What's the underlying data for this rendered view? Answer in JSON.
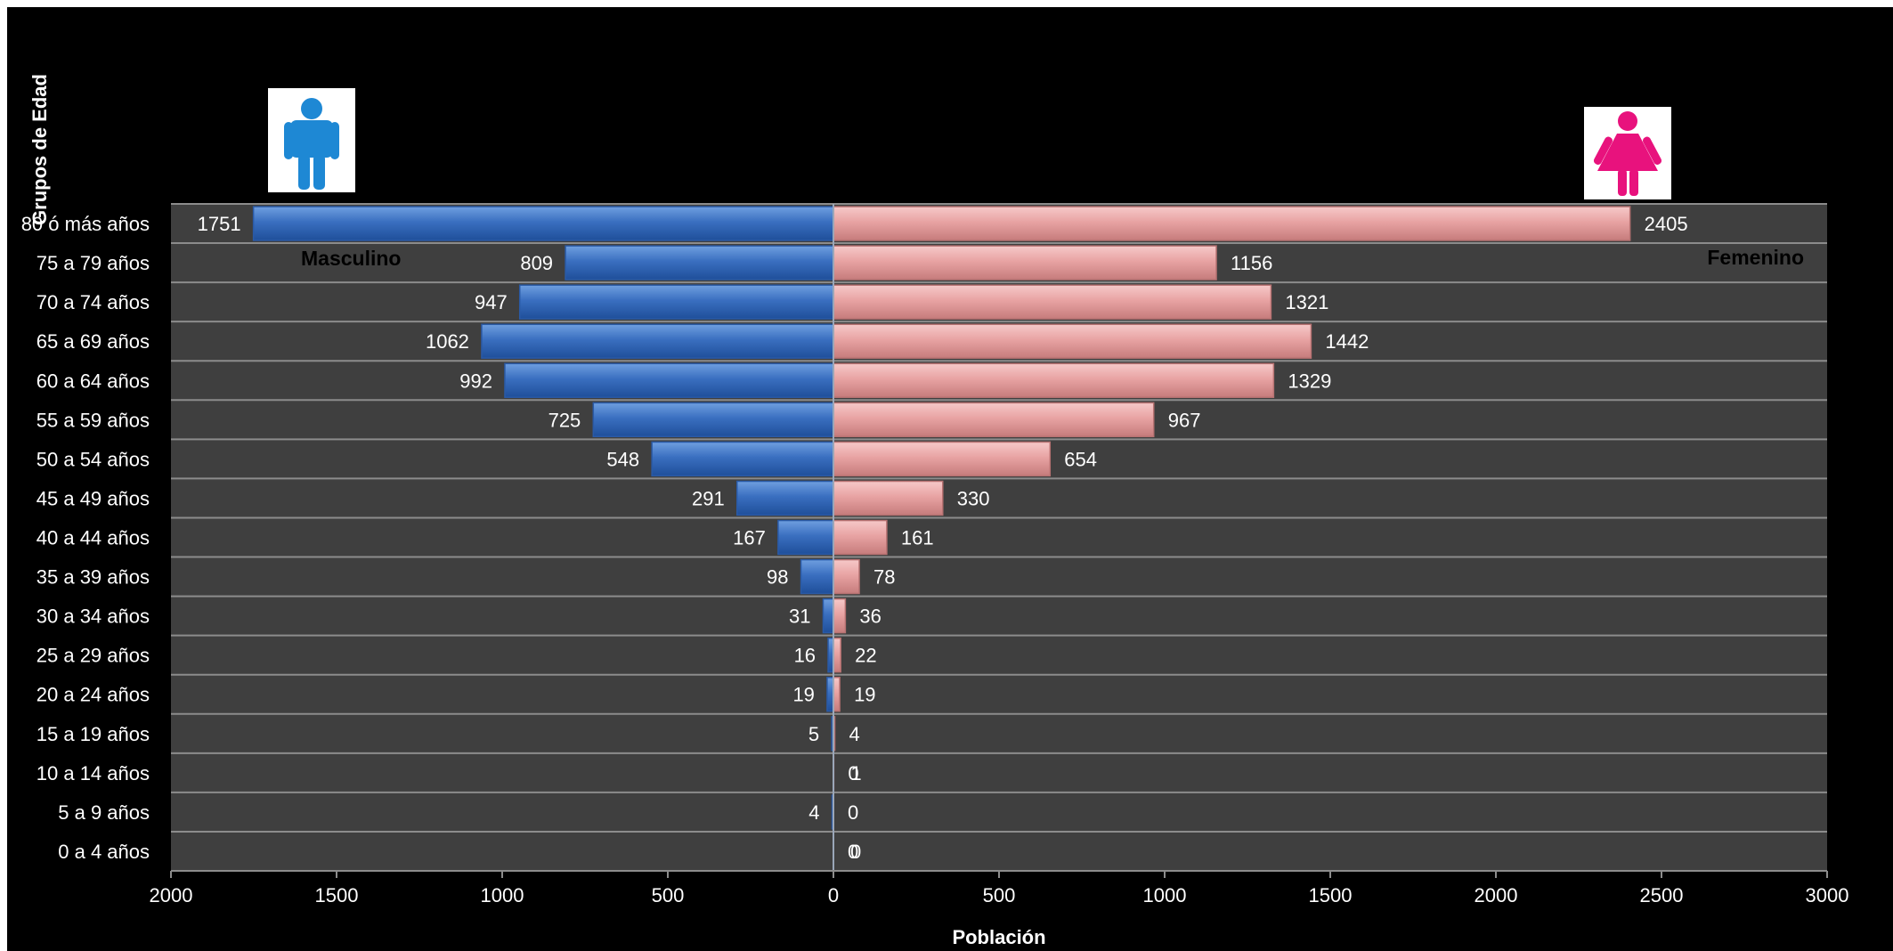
{
  "chart_data": {
    "type": "bar",
    "orientation": "horizontal",
    "layout": "population-pyramid",
    "categories": [
      "0 a 4 años",
      "5 a 9 años",
      "10 a 14 años",
      "15 a 19 años",
      "20 a 24 años",
      "25 a 29 años",
      "30 a 34 años",
      "35 a 39 años",
      "40 a 44 años",
      "45 a 49 años",
      "50 a 54 años",
      "55 a 59 años",
      "60 a 64 años",
      "65 a 69 años",
      "70 a 74 años",
      "75 a 79 años",
      "80 ó más años"
    ],
    "series": [
      {
        "name": "Masculino",
        "color": "#3a6fc0",
        "values": [
          0,
          4,
          0,
          5,
          19,
          16,
          31,
          98,
          167,
          291,
          548,
          725,
          992,
          1062,
          947,
          809,
          1751
        ]
      },
      {
        "name": "Femenino",
        "color": "#e8a3a3",
        "values": [
          0,
          0,
          1,
          4,
          19,
          22,
          36,
          78,
          161,
          330,
          654,
          967,
          1329,
          1442,
          1321,
          1156,
          2405
        ]
      }
    ],
    "data_labels": {
      "Masculino": [
        "",
        "4",
        "",
        "5",
        "19",
        "16",
        "31",
        "98",
        "167",
        "291",
        "548",
        "725",
        "992",
        "1062",
        "947",
        "809",
        "1751"
      ],
      "Femenino": [
        "0",
        "0",
        "0",
        "4",
        "19",
        "22",
        "36",
        "78",
        "161",
        "330",
        "654",
        "967",
        "1329",
        "1442",
        "1321",
        "1156",
        "2405"
      ],
      "Femenino_extra": [
        "0",
        "",
        "1",
        "",
        "",
        "",
        "",
        "",
        "",
        "",
        "",
        "",
        "",
        "",
        "",
        "",
        ""
      ]
    },
    "xlabel": "Población",
    "ylabel": "Grupos de Edad",
    "x_ticks": [
      "2000",
      "1500",
      "1000",
      "500",
      "0",
      "500",
      "1000",
      "1500",
      "2000",
      "2500",
      "3000"
    ],
    "xlim": [
      -2000,
      3000
    ],
    "grid": "horizontal",
    "legend": "inline",
    "colors": {
      "background": "#000000",
      "plot_area": "#3f3f3f",
      "gridline": "#8c8c8c",
      "male_icon": "#1e88d4",
      "female_icon": "#e8127d",
      "text": "#ffffff"
    }
  },
  "icons": {
    "male": "male-person-icon",
    "female": "female-person-icon"
  }
}
